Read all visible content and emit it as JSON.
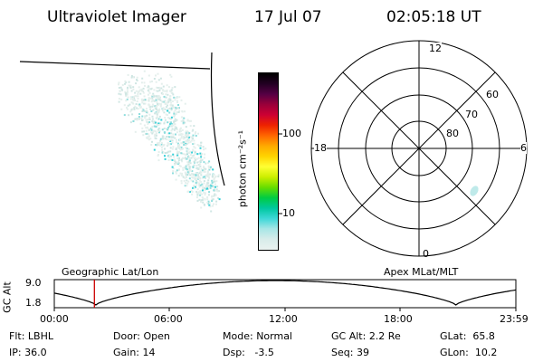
{
  "header": {
    "title": "Ultraviolet Imager",
    "date": "17 Jul 07",
    "time": "02:05:18 UT"
  },
  "colorbar": {
    "unit_label": "photon cm⁻²s⁻¹",
    "ticks": [
      "100",
      "10"
    ],
    "colors": [
      "#eaf2f0",
      "#d8ecea",
      "#a8e6e6",
      "#3fd8d8",
      "#00c8a0",
      "#00cc44",
      "#66dd00",
      "#ccee00",
      "#ffff33",
      "#ffd400",
      "#ffaa00",
      "#ff6600",
      "#ee2200",
      "#cc0033",
      "#99003a",
      "#550044",
      "#220022",
      "#000000"
    ]
  },
  "polar": {
    "clock_labels": [
      "12",
      "18",
      "6",
      "0"
    ],
    "lat_labels": [
      "60",
      "70",
      "80"
    ]
  },
  "altitude_plot": {
    "left_title": "Geographic Lat/Lon",
    "right_title": "Apex MLat/MLT",
    "y_axis_label": "GC Alt",
    "y_ticks": [
      "9.0",
      "1.8"
    ],
    "x_ticks": [
      "00:00",
      "06:00",
      "12:00",
      "18:00",
      "23:59"
    ],
    "current_time_fraction": 0.0869,
    "marker_color": "#cc0000"
  },
  "status": {
    "filter_label": "Flt:",
    "filter_value": "LBHL",
    "ip_label": "IP:",
    "ip_value": "36.0",
    "door_label": "Door:",
    "door_value": "Open",
    "gain_label": "Gain:",
    "gain_value": "14",
    "mode_label": "Mode:",
    "mode_value": "Normal",
    "dsp_label": "Dsp:",
    "dsp_value": "-3.5",
    "gcalt_label": "GC Alt:",
    "gcalt_value": "2.2 Re",
    "seq_label": "Seq:",
    "seq_value": "39",
    "glat_label": "GLat:",
    "glat_value": "65.8",
    "glon_label": "GLon:",
    "glon_value": "10.2"
  }
}
